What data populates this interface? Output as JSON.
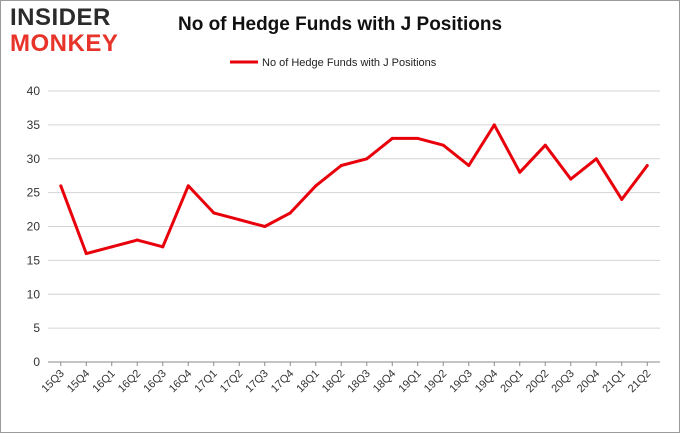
{
  "logo": {
    "line1": "INSIDER",
    "line2": "MONKEY"
  },
  "chart_data": {
    "type": "line",
    "title": "No of Hedge Funds with J Positions",
    "xlabel": "",
    "ylabel": "",
    "categories": [
      "15Q3",
      "15Q4",
      "16Q1",
      "16Q2",
      "16Q3",
      "16Q4",
      "17Q1",
      "17Q2",
      "17Q3",
      "17Q4",
      "18Q1",
      "18Q2",
      "18Q3",
      "18Q4",
      "19Q1",
      "19Q2",
      "19Q3",
      "19Q4",
      "20Q1",
      "20Q2",
      "20Q3",
      "20Q4",
      "21Q1",
      "21Q2"
    ],
    "series": [
      {
        "name": "No of Hedge Funds with J Positions",
        "color": "#e8000b",
        "values": [
          26,
          16,
          17,
          18,
          17,
          26,
          22,
          21,
          20,
          22,
          26,
          29,
          30,
          33,
          33,
          32,
          29,
          35,
          28,
          32,
          27,
          30,
          24,
          29
        ]
      }
    ],
    "ylim": [
      0,
      40
    ],
    "yticks": [
      0,
      5,
      10,
      15,
      20,
      25,
      30,
      35,
      40
    ],
    "grid": true,
    "legend": "top"
  }
}
